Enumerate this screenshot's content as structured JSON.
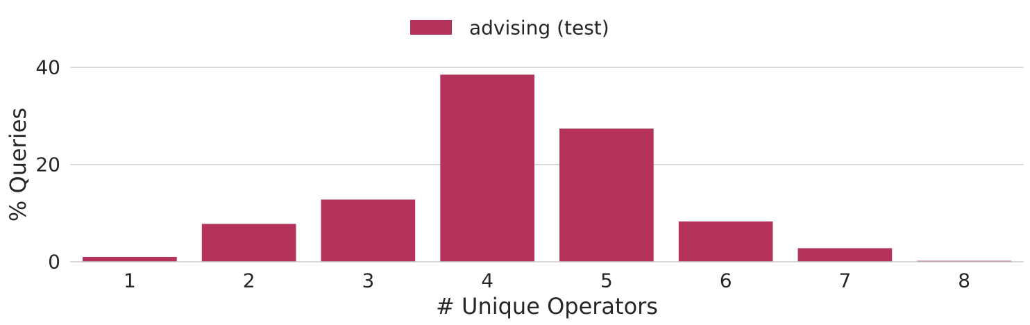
{
  "chart_data": {
    "type": "bar",
    "categories": [
      "1",
      "2",
      "3",
      "4",
      "5",
      "6",
      "7",
      "8"
    ],
    "series": [
      {
        "name": "advising (test)",
        "values": [
          1.0,
          7.8,
          12.8,
          38.5,
          27.4,
          8.3,
          2.8,
          0.2
        ]
      }
    ],
    "xlabel": "# Unique Operators",
    "ylabel": "% Queries",
    "ylim": [
      0,
      40
    ],
    "yticks": [
      0,
      20,
      40
    ],
    "grid": "horizontal",
    "legend": "top-center",
    "colors": {
      "bar": "#b5325a",
      "grid": "#cccccc",
      "text": "#262626"
    }
  }
}
